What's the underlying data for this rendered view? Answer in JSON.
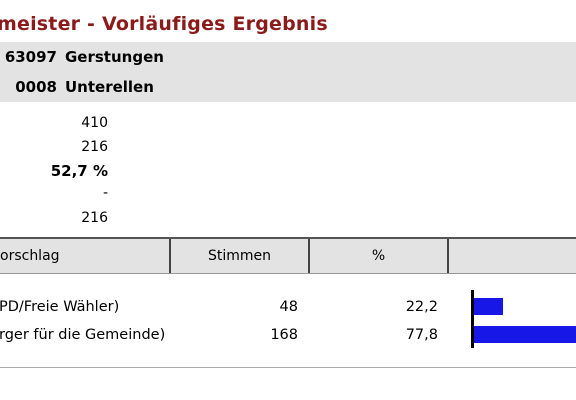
{
  "header": {
    "title": "meister - Vorläufiges Ergebnis"
  },
  "location": {
    "municipality": {
      "code": "63097",
      "name": "Gerstungen"
    },
    "district": {
      "code": "0008",
      "name": "Unterellen"
    }
  },
  "summary": {
    "values": [
      "410",
      "216",
      "52,7 %",
      "-",
      "216"
    ]
  },
  "table": {
    "columns": [
      "orschlag",
      "Stimmen",
      "%"
    ],
    "rows": [
      {
        "name": "PD/Freie Wähler)",
        "stimmen": "48",
        "percent": "22,2",
        "bar_fraction": 0.222
      },
      {
        "name": "rger für die Gemeinde)",
        "stimmen": "168",
        "percent": "77,8",
        "bar_fraction": 0.778
      }
    ]
  },
  "colors": {
    "title": "#8b1a1a",
    "bar": "#1717e8",
    "band": "#e3e3e3"
  }
}
